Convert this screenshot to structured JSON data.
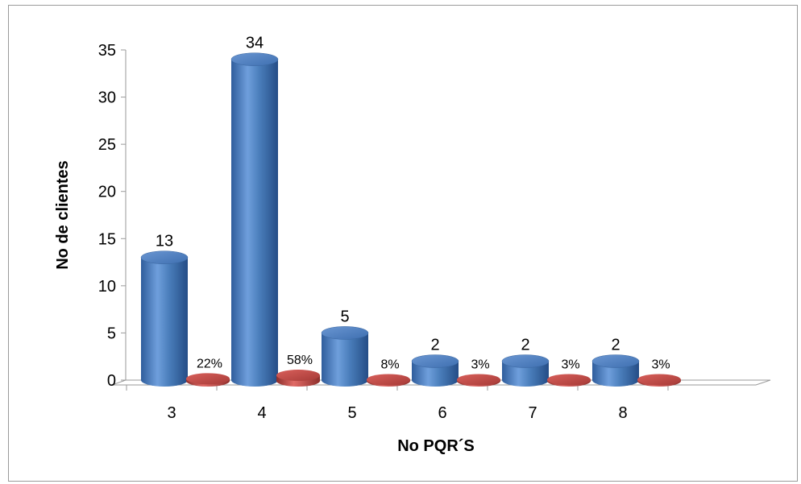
{
  "chart_data": {
    "type": "bar",
    "title": "",
    "xlabel": "No PQR´S",
    "ylabel": "No de clientes",
    "categories": [
      "3",
      "4",
      "5",
      "6",
      "7",
      "8"
    ],
    "ylim": [
      0,
      35
    ],
    "yticks": [
      "0",
      "5",
      "10",
      "15",
      "20",
      "25",
      "30",
      "35"
    ],
    "grid": false,
    "series": [
      {
        "values": [
          13,
          34,
          5,
          2,
          2,
          2
        ],
        "labels": [
          "13",
          "34",
          "5",
          "2",
          "2",
          "2"
        ],
        "color": "#4a7ebb"
      },
      {
        "values": [
          0.22,
          0.58,
          0.08,
          0.03,
          0.03,
          0.03
        ],
        "labels": [
          "22%",
          "58%",
          "8%",
          "3%",
          "3%",
          "3%"
        ],
        "color": "#c0504d"
      }
    ]
  }
}
